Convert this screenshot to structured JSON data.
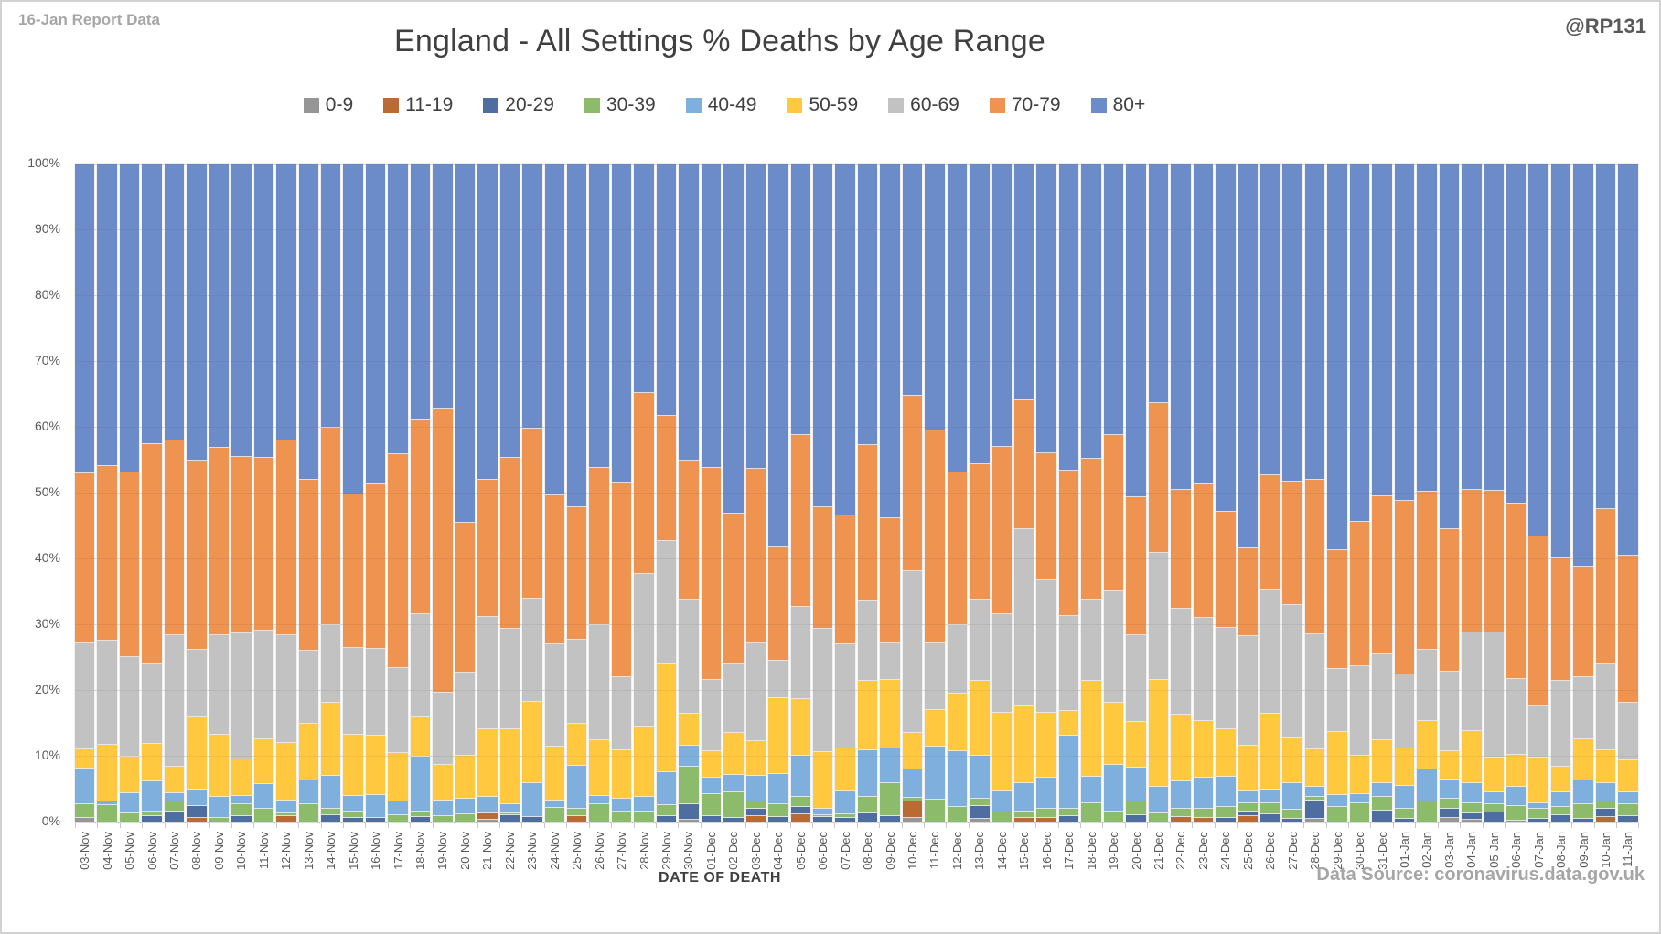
{
  "header": {
    "report_label": "16-Jan Report Data",
    "title": "England - All Settings % Deaths by Age Range",
    "handle": "@RP131"
  },
  "y_axis": {
    "ticks": [
      "100%",
      "90%",
      "80%",
      "70%",
      "60%",
      "50%",
      "40%",
      "30%",
      "20%",
      "10%",
      "0%"
    ]
  },
  "x_axis": {
    "title": "DATE OF DEATH"
  },
  "footer": {
    "source": "Data Source: coronavirus.data.gov.uk"
  },
  "chart_data": {
    "type": "bar",
    "stacked": true,
    "percent_stacked": true,
    "title": "England - All Settings % Deaths by Age Range",
    "xlabel": "DATE OF DEATH",
    "ylabel": "",
    "ylim": [
      0,
      100
    ],
    "grid": true,
    "legend_position": "top",
    "categories": [
      "03-Nov",
      "04-Nov",
      "05-Nov",
      "06-Nov",
      "07-Nov",
      "08-Nov",
      "09-Nov",
      "10-Nov",
      "11-Nov",
      "12-Nov",
      "13-Nov",
      "14-Nov",
      "15-Nov",
      "16-Nov",
      "17-Nov",
      "18-Nov",
      "19-Nov",
      "20-Nov",
      "21-Nov",
      "22-Nov",
      "23-Nov",
      "24-Nov",
      "25-Nov",
      "26-Nov",
      "27-Nov",
      "28-Nov",
      "29-Nov",
      "30-Nov",
      "01-Dec",
      "02-Dec",
      "03-Dec",
      "04-Dec",
      "05-Dec",
      "06-Dec",
      "07-Dec",
      "08-Dec",
      "09-Dec",
      "10-Dec",
      "11-Dec",
      "12-Dec",
      "13-Dec",
      "14-Dec",
      "15-Dec",
      "16-Dec",
      "17-Dec",
      "18-Dec",
      "19-Dec",
      "20-Dec",
      "21-Dec",
      "22-Dec",
      "23-Dec",
      "24-Dec",
      "25-Dec",
      "26-Dec",
      "27-Dec",
      "28-Dec",
      "29-Dec",
      "30-Dec",
      "31-Dec",
      "01-Jan",
      "02-Jan",
      "03-Jan",
      "04-Jan",
      "05-Jan",
      "06-Jan",
      "07-Jan",
      "08-Jan",
      "09-Jan",
      "10-Jan",
      "11-Jan"
    ],
    "series": [
      {
        "name": "0-9",
        "color": "#969696",
        "values": [
          0.6,
          0,
          0,
          0,
          0,
          0,
          0,
          0,
          0,
          0,
          0,
          0,
          0,
          0,
          0,
          0,
          0,
          0,
          0.3,
          0,
          0,
          0,
          0,
          0,
          0,
          0,
          0,
          0.3,
          0,
          0,
          0,
          0,
          0,
          0,
          0,
          0,
          0,
          0.6,
          0,
          0,
          0.4,
          0,
          0,
          0,
          0,
          0,
          0,
          0,
          0,
          0,
          0,
          0,
          0,
          0,
          0,
          0.4,
          0,
          0,
          0,
          0,
          0,
          0.5,
          0.3,
          0,
          0.2,
          0,
          0,
          0,
          0,
          0
        ]
      },
      {
        "name": "11-19",
        "color": "#ba6a33",
        "values": [
          0,
          0,
          0,
          0,
          0,
          0.6,
          0,
          0,
          0,
          0.9,
          0,
          0,
          0,
          0,
          0,
          0,
          0,
          0,
          0.9,
          0,
          0,
          0,
          0.9,
          0,
          0,
          0,
          0,
          0,
          0,
          0,
          0.8,
          0,
          1.1,
          0,
          0,
          0,
          0,
          2.4,
          0,
          0,
          0,
          0,
          0.6,
          0.5,
          0,
          0,
          0,
          0,
          0,
          0.7,
          0.6,
          0,
          0.9,
          0,
          0,
          0,
          0,
          0,
          0,
          0,
          0,
          0,
          0,
          0,
          0,
          0,
          0,
          0,
          0.7,
          0
        ]
      },
      {
        "name": "20-29",
        "color": "#4f6ea0",
        "values": [
          0,
          0,
          0,
          0.9,
          1.5,
          1.7,
          0,
          0.8,
          0,
          0,
          0,
          1.0,
          0.6,
          0.6,
          0,
          0.7,
          0,
          0,
          0,
          1.0,
          0.7,
          0,
          0,
          0,
          0,
          0,
          0.8,
          2.4,
          0.9,
          0.5,
          1.1,
          0.7,
          1.1,
          0.7,
          0.5,
          1.2,
          0.9,
          0,
          0,
          0,
          2.0,
          0,
          0,
          0,
          0.8,
          0,
          0,
          1.0,
          0,
          0,
          0,
          0.5,
          0.7,
          1.1,
          0.4,
          2.8,
          0,
          0,
          1.6,
          0.4,
          0,
          1.5,
          0.9,
          1.4,
          0,
          0.4,
          1.0,
          0.4,
          1.3,
          0.9
        ]
      },
      {
        "name": "30-39",
        "color": "#8bbb6b",
        "values": [
          2.0,
          2.5,
          1.2,
          0.7,
          1.5,
          0,
          0.5,
          1.8,
          1.9,
          0.3,
          2.6,
          1.0,
          0.9,
          0,
          1.0,
          0.8,
          0.8,
          1.1,
          0,
          0.2,
          0,
          2.1,
          1.1,
          2.6,
          1.5,
          1.5,
          1.7,
          5.7,
          3.3,
          3.9,
          1.2,
          1.9,
          1.5,
          0.3,
          0.6,
          2.6,
          4.9,
          0.6,
          3.4,
          2.2,
          1.1,
          1.4,
          1.0,
          1.5,
          1.2,
          2.8,
          1.5,
          2.0,
          1.2,
          1.3,
          1.3,
          1.7,
          1.2,
          1.7,
          1.4,
          0.6,
          2.2,
          2.8,
          2.1,
          1.6,
          3.0,
          1.5,
          1.6,
          1.3,
          2.2,
          1.5,
          1.2,
          2.3,
          1.1,
          1.8
        ]
      },
      {
        "name": "40-49",
        "color": "#7fafdd",
        "values": [
          5.5,
          0.6,
          3.1,
          4.5,
          1.3,
          2.5,
          3.3,
          1.3,
          3.8,
          2.0,
          3.6,
          5.0,
          2.4,
          3.4,
          2.0,
          8.4,
          2.4,
          2.4,
          2.5,
          1.5,
          5.2,
          1.1,
          6.5,
          1.3,
          2.0,
          2.2,
          5.0,
          3.2,
          2.5,
          2.7,
          3.8,
          4.6,
          6.3,
          1.0,
          3.6,
          7.1,
          5.3,
          4.3,
          8.0,
          8.5,
          6.5,
          3.3,
          4.2,
          4.7,
          11.0,
          4.0,
          7.1,
          5.2,
          4.1,
          4.1,
          4.8,
          4.6,
          1.9,
          2.0,
          4.0,
          1.5,
          1.8,
          1.3,
          2.1,
          3.4,
          4.9,
          2.9,
          3.1,
          1.8,
          2.9,
          0.9,
          2.2,
          3.6,
          2.7,
          1.7
        ]
      },
      {
        "name": "50-59",
        "color": "#ffc83e",
        "values": [
          2.9,
          8.6,
          5.6,
          5.7,
          4.1,
          11.1,
          9.4,
          5.5,
          6.8,
          8.8,
          8.6,
          11.1,
          9.3,
          9.1,
          7.4,
          6.0,
          5.4,
          6.5,
          10.3,
          11.4,
          12.3,
          8.2,
          6.4,
          8.5,
          7.3,
          10.8,
          16.4,
          4.8,
          4.0,
          6.4,
          5.3,
          11.5,
          8.6,
          8.6,
          6.4,
          10.5,
          10.4,
          5.6,
          5.6,
          8.7,
          11.4,
          11.8,
          11.8,
          9.8,
          3.8,
          14.6,
          9.5,
          6.9,
          16.3,
          10.2,
          8.6,
          7.2,
          6.8,
          11.6,
          7.0,
          5.7,
          9.6,
          5.9,
          6.5,
          5.7,
          7.4,
          4.3,
          7.8,
          5.2,
          4.9,
          6.9,
          4.0,
          6.2,
          5.0,
          4.9
        ]
      },
      {
        "name": "60-69",
        "color": "#c2c2c2",
        "values": [
          16.1,
          15.8,
          15.1,
          12.1,
          20.0,
          10.2,
          15.1,
          19.2,
          16.5,
          16.4,
          11.2,
          11.7,
          13.2,
          13.1,
          12.9,
          15.7,
          11.0,
          12.6,
          17.1,
          15.2,
          15.7,
          15.6,
          12.8,
          17.4,
          11.2,
          23.1,
          18.7,
          17.4,
          10.9,
          10.4,
          14.9,
          5.8,
          14.0,
          18.7,
          15.9,
          12.1,
          5.6,
          24.5,
          10.1,
          10.5,
          12.4,
          15.1,
          26.9,
          20.2,
          14.4,
          12.3,
          16.9,
          13.2,
          19.3,
          16.1,
          15.7,
          15.4,
          16.7,
          18.8,
          20.1,
          17.5,
          9.6,
          13.6,
          13.1,
          11.3,
          10.8,
          12.1,
          15.1,
          19.1,
          11.5,
          7.9,
          13.0,
          9.4,
          13.1,
          8.8
        ]
      },
      {
        "name": "70-79",
        "color": "#ef9350",
        "values": [
          25.8,
          26.5,
          28.1,
          33.5,
          29.5,
          28.8,
          28.5,
          26.8,
          26.3,
          29.5,
          26.0,
          30.0,
          23.4,
          25.0,
          32.5,
          29.4,
          43.2,
          22.8,
          20.8,
          26.0,
          25.8,
          22.6,
          20.1,
          24.0,
          29.5,
          27.6,
          19.1,
          21.1,
          32.1,
          22.9,
          26.5,
          17.3,
          26.2,
          18.5,
          19.6,
          23.7,
          19.0,
          26.8,
          32.3,
          23.2,
          20.5,
          25.3,
          19.5,
          19.3,
          22.2,
          21.5,
          23.8,
          21.0,
          22.7,
          18.0,
          20.2,
          17.7,
          13.4,
          17.4,
          18.8,
          23.4,
          18.1,
          21.9,
          24.0,
          26.4,
          24.0,
          21.6,
          21.6,
          21.5,
          26.6,
          25.7,
          18.6,
          16.9,
          23.6,
          22.3
        ]
      },
      {
        "name": "80+",
        "color": "#6c8cc9",
        "values": [
          47.1,
          46.0,
          46.9,
          42.6,
          42.1,
          45.1,
          43.2,
          44.6,
          44.7,
          42.1,
          48.0,
          40.2,
          50.2,
          48.8,
          44.2,
          39.0,
          37.2,
          54.6,
          48.1,
          44.7,
          40.3,
          50.4,
          52.2,
          46.2,
          48.5,
          34.8,
          38.3,
          45.1,
          46.3,
          53.2,
          46.4,
          58.2,
          41.2,
          52.2,
          53.4,
          42.8,
          53.9,
          35.2,
          40.6,
          46.9,
          45.7,
          43.1,
          36.0,
          44.0,
          46.6,
          44.8,
          41.2,
          50.7,
          36.4,
          49.6,
          48.8,
          52.9,
          58.4,
          47.4,
          48.3,
          48.1,
          58.7,
          54.5,
          50.6,
          51.2,
          49.9,
          55.6,
          49.6,
          49.7,
          51.7,
          56.7,
          60.0,
          61.2,
          52.5,
          59.6
        ]
      }
    ]
  }
}
